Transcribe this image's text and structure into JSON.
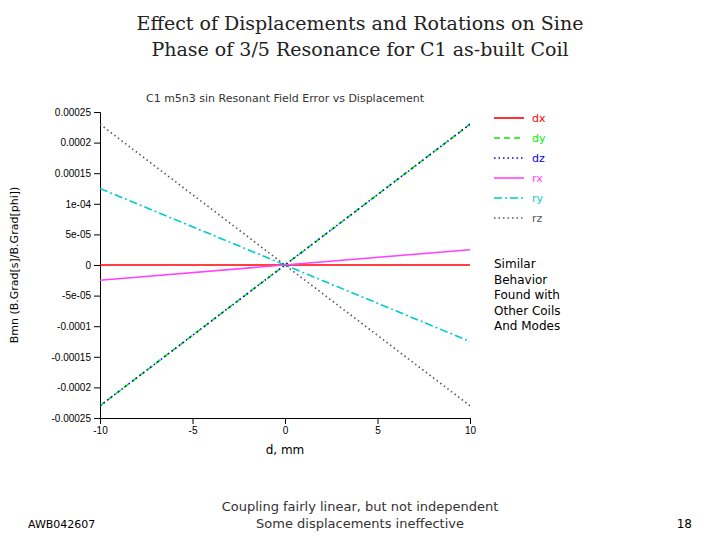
{
  "title": [
    "Effect of Displacements and Rotations on Sine",
    "Phase of 3/5 Resonance for C1 as-built Coil"
  ],
  "footer": [
    "AWB042607",
    "Coupling fairly linear, but not independent\nSome displacements ineffective",
    "18"
  ],
  "chart_data": {
    "type": "line",
    "title": "C1 m5n3 sin Resonant Field Error vs Displacement",
    "x_label": "d, mm",
    "y_label": "Bmn (B.Grad[s]/B.Grad[phi])",
    "x": [
      -10,
      10
    ],
    "series": [
      {
        "name": "dx",
        "color": "#FF0000",
        "line_style": "solid",
        "values": [
          0,
          0
        ]
      },
      {
        "name": "dy",
        "color": "#00EE00",
        "line_style": "dashed",
        "values": [
          -0.00023,
          0.00023
        ]
      },
      {
        "name": "dz",
        "color": "#0000EE",
        "line_style": "dotted",
        "values": [
          -0.00023,
          0.00023
        ]
      },
      {
        "name": "rx",
        "color": "#FF44FF",
        "line_style": "solid",
        "values": [
          -2.5e-05,
          2.5e-05
        ]
      },
      {
        "name": "ry",
        "color": "#00CCCC",
        "line_style": "dashdot",
        "values": [
          0.000125,
          -0.000125
        ]
      },
      {
        "name": "rz",
        "color": "#555555",
        "line_style": "dotted",
        "values": [
          0.00023,
          -0.00023
        ]
      }
    ],
    "xlim": [
      -10,
      10
    ],
    "ylim": [
      -0.00025,
      0.00025
    ],
    "xticks": [
      -10,
      -5,
      0,
      5,
      10
    ],
    "yticks": [
      -0.00025,
      -0.0002,
      -0.00015,
      -0.0001,
      {
        "value": -5e-05,
        "label": "-5e-05"
      },
      0,
      {
        "value": 5e-05,
        "label": "5e-05"
      },
      {
        "value": 0.0001,
        "label": "1e-04"
      },
      0.00015,
      0.0002,
      0.00025
    ],
    "grid": false,
    "legend": "right",
    "annotations": [
      "Similar\nBehavior\nFound with\nOther Coils\nAnd Modes"
    ]
  }
}
